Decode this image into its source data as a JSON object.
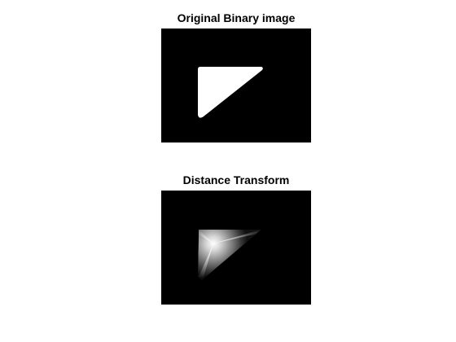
{
  "figure": {
    "background_color": "#ffffff",
    "axes_color": "#000000",
    "panels": [
      {
        "title": "Original Binary image",
        "content": "binary-triangle",
        "foreground_color": "#ffffff"
      },
      {
        "title": "Distance Transform",
        "content": "distance-transform-triangle",
        "foreground_color": "#ffffff"
      }
    ]
  }
}
